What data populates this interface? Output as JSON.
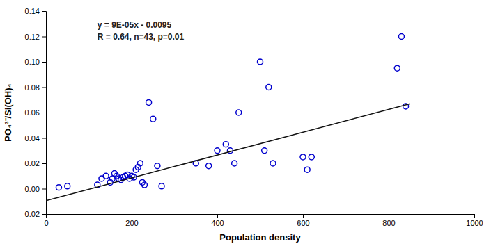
{
  "chart_data": {
    "type": "scatter",
    "xlabel": "Population density",
    "ylabel": "PO₄³⁻/Si(OH)₄",
    "annotations": [
      "y = 9E-05x - 0.0095",
      "R = 0.64, n=43, p=0.01"
    ],
    "xlim": [
      0,
      1000
    ],
    "ylim": [
      -0.02,
      0.14
    ],
    "xticks": [
      0,
      200,
      400,
      600,
      800,
      1000
    ],
    "yticks": [
      -0.02,
      {
        "value": 0,
        "label": "0.00"
      },
      0.02,
      0.04,
      0.06,
      0.08,
      {
        "value": 0.1,
        "label": "0.10"
      },
      0.12,
      0.14
    ],
    "grid": false,
    "series": [
      {
        "type": "scatter",
        "marker": "circle-open",
        "color": "#0000CD",
        "x": [
          30,
          50,
          120,
          130,
          140,
          150,
          155,
          160,
          165,
          170,
          175,
          180,
          185,
          190,
          195,
          200,
          205,
          210,
          215,
          220,
          225,
          230,
          240,
          250,
          260,
          270,
          350,
          380,
          400,
          420,
          430,
          440,
          450,
          500,
          510,
          520,
          530,
          600,
          610,
          620,
          820,
          830,
          840
        ],
        "values": [
          0.001,
          0.002,
          0.003,
          0.008,
          0.01,
          0.005,
          0.008,
          0.012,
          0.01,
          0.008,
          0.007,
          0.009,
          0.01,
          0.011,
          0.008,
          0.01,
          0.009,
          0.015,
          0.017,
          0.02,
          0.005,
          0.003,
          0.068,
          0.055,
          0.018,
          0.002,
          0.02,
          0.018,
          0.03,
          0.035,
          0.03,
          0.02,
          0.06,
          0.1,
          0.03,
          0.08,
          0.02,
          0.025,
          0.015,
          0.025,
          0.095,
          0.12,
          0.065
        ]
      },
      {
        "type": "line",
        "line_style": "solid",
        "color": "#111111",
        "x": [
          0,
          850
        ],
        "values": [
          -0.0095,
          0.067
        ]
      }
    ]
  }
}
